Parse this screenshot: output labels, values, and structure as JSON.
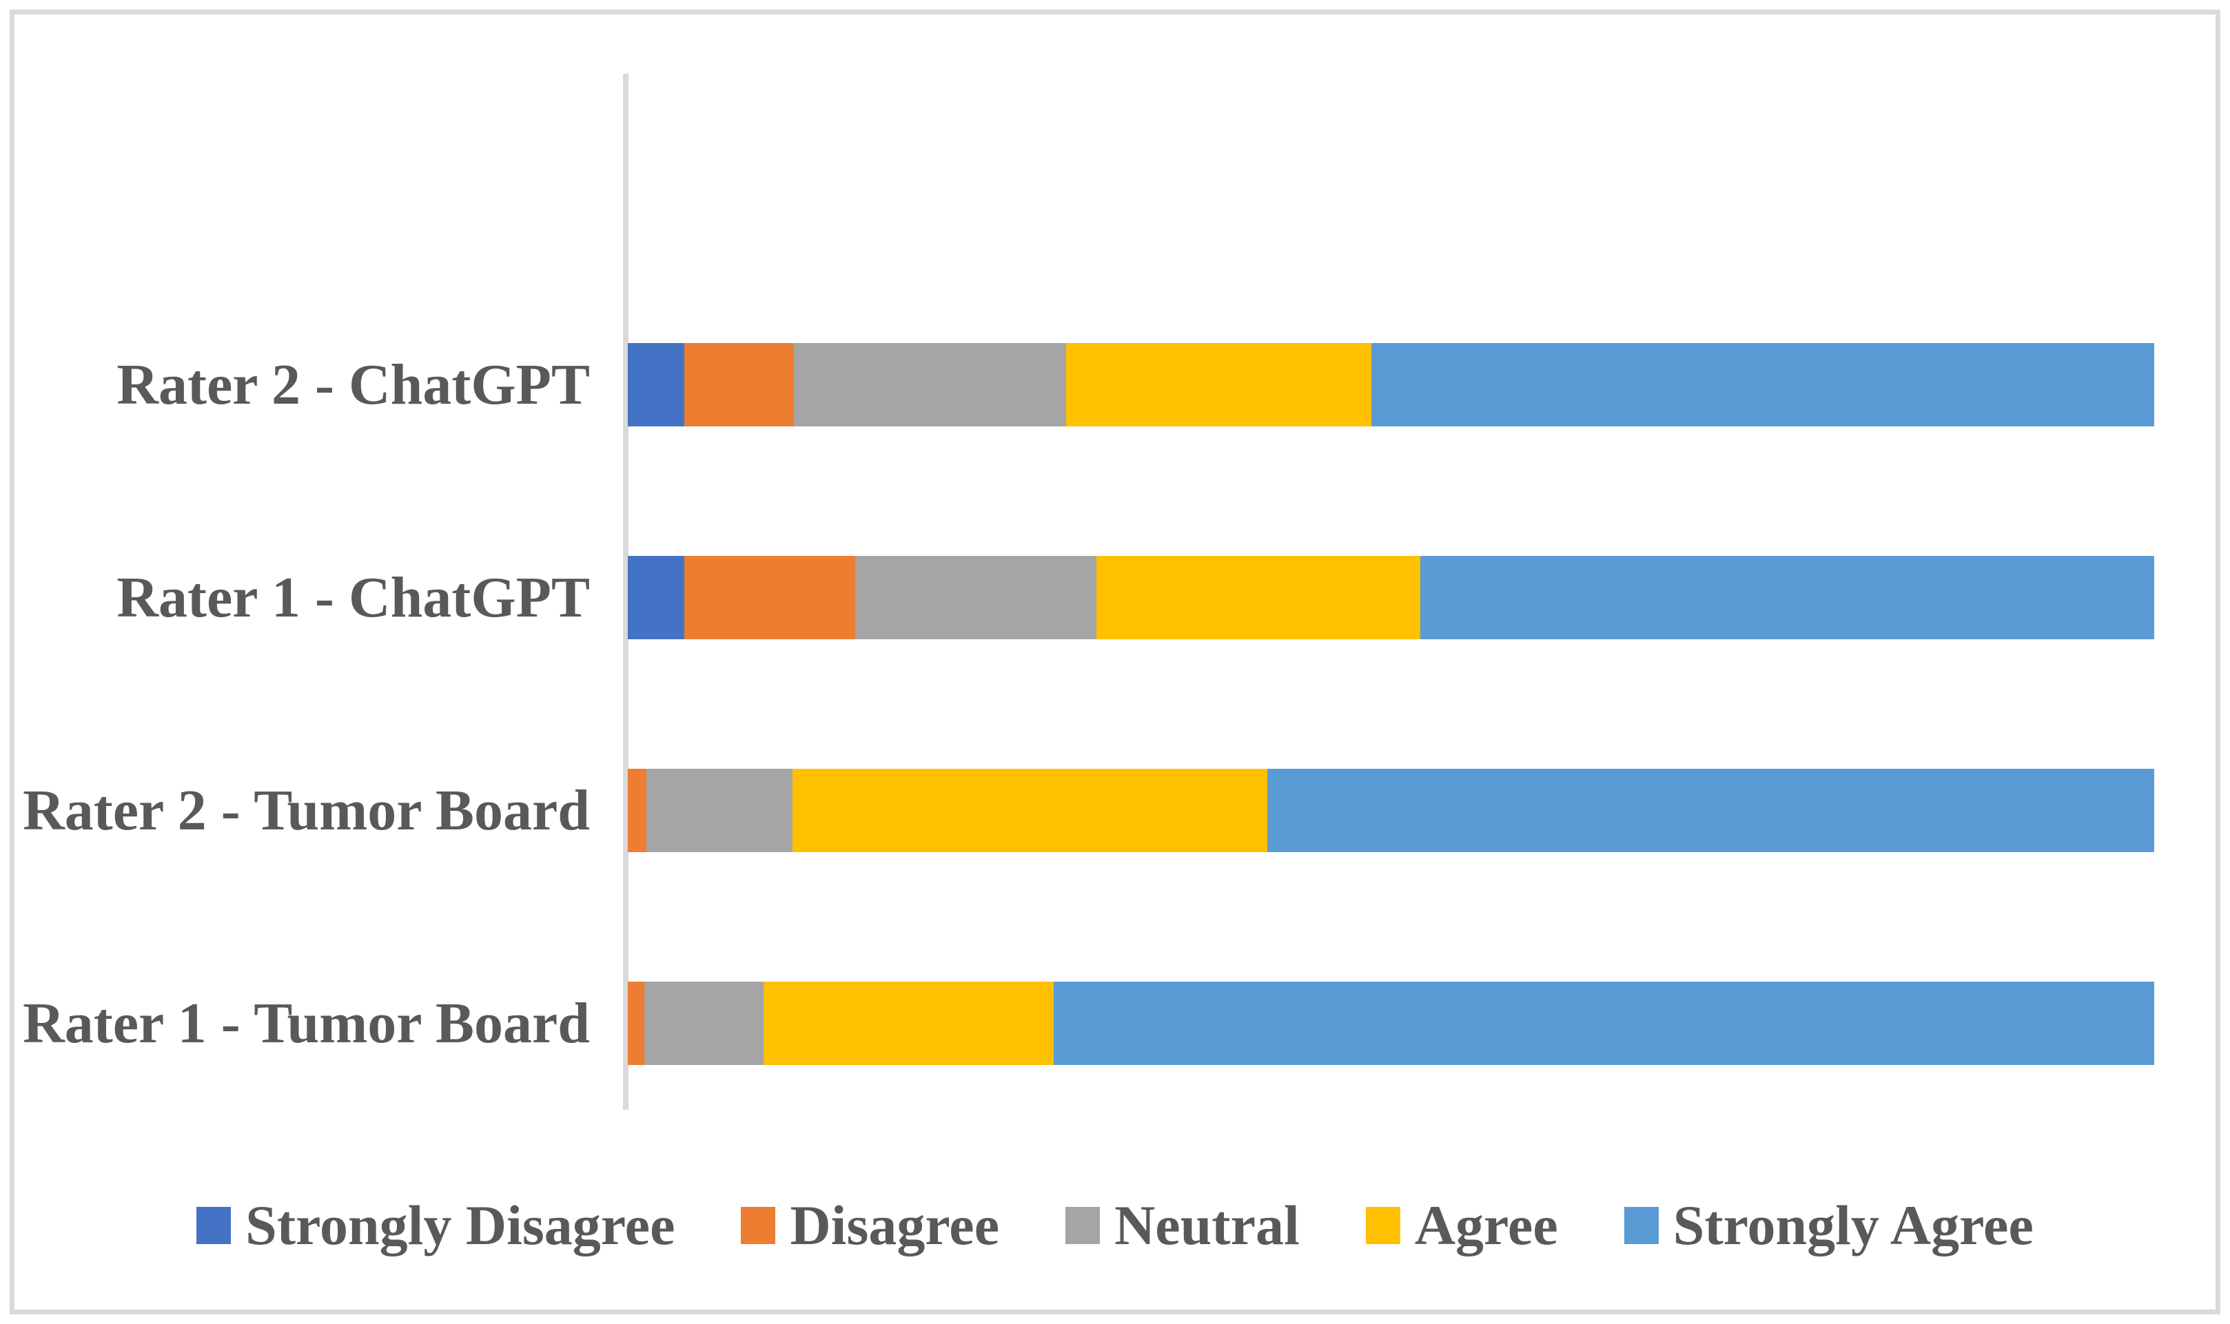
{
  "figure": {
    "background": "#FFFFFF",
    "frame_color": "#D9D9D9",
    "axis_line_color": "#D9D9D9",
    "text_color": "#595959"
  },
  "chart_data": {
    "type": "bar",
    "orientation": "horizontal_stacked",
    "stacking": "percent",
    "title": "",
    "xlabel": "",
    "ylabel": "",
    "categories": [
      "Rater 2 - ChatGPT",
      "Rater 1 - ChatGPT",
      "Rater 2 - Tumor Board",
      "Rater 1 - Tumor Board"
    ],
    "series": [
      {
        "name": "Strongly Disagree",
        "color": "#4472C4",
        "values": [
          3.7,
          3.7,
          0,
          0
        ]
      },
      {
        "name": "Disagree",
        "color": "#ED7D31",
        "values": [
          7.2,
          11.2,
          1.2,
          1.1
        ]
      },
      {
        "name": "Neutral",
        "color": "#A5A5A5",
        "values": [
          17.8,
          15.8,
          9.6,
          7.8
        ]
      },
      {
        "name": "Agree",
        "color": "#FFC000",
        "values": [
          20.0,
          21.2,
          31.1,
          19.0
        ]
      },
      {
        "name": "Strongly Agree",
        "color": "#5B9BD5",
        "values": [
          51.3,
          48.1,
          58.1,
          72.1
        ]
      }
    ],
    "xlim": [
      0,
      100
    ],
    "gridlines": false,
    "data_labels": false,
    "value_axis_labels_visible": false,
    "legend_position": "bottom",
    "note": "Segment values are percentages of each 100% stacked bar, estimated from pixel measurement; no numeric labels are shown in the figure."
  }
}
